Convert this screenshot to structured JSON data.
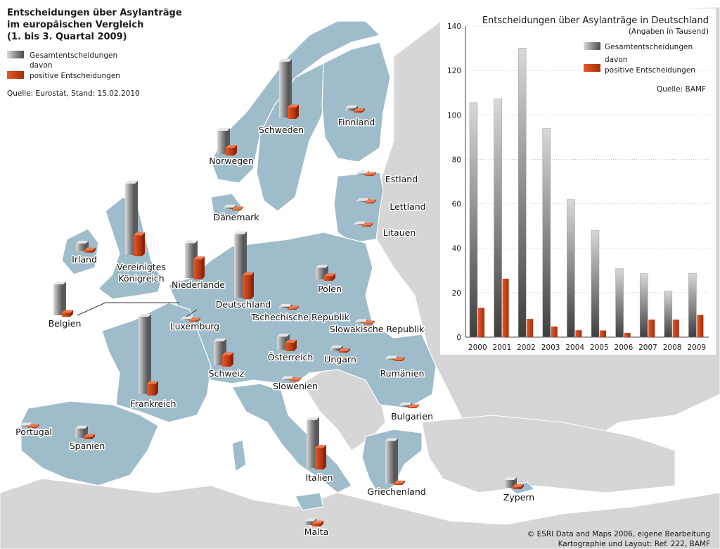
{
  "map": {
    "title_lines": [
      "Entscheidungen über Asylanträge",
      "im europäischen Vergleich",
      "(1. bis 3. Quartal 2009)"
    ],
    "legend": {
      "total_label": "Gesamtentscheidungen",
      "davon_label": "davon",
      "positive_label": "positive Entscheidungen"
    },
    "source": "Quelle: Eurostat, Stand: 15.02.2010",
    "credits": [
      "© ESRI Data and Maps 2006, eigene Bearbeitung",
      "Kartographie und Layout: Ref. 222, BAMF"
    ],
    "colors": {
      "sea": "#ffffff",
      "eu_land": "#9fbccb",
      "other_land": "#d6d6d6",
      "border": "#ffffff",
      "total_bar": "#8a8a8a",
      "positive_bar": "#c63a12"
    },
    "countries": [
      {
        "name": "Norwegen",
        "total_level": 0.3,
        "positive_level": 0.1
      },
      {
        "name": "Schweden",
        "total_level": 0.72,
        "positive_level": 0.15
      },
      {
        "name": "Finnland",
        "total_level": 0.04,
        "positive_level": 0.02
      },
      {
        "name": "Estland",
        "total_level": 0.0,
        "positive_level": 0.0
      },
      {
        "name": "Lettland",
        "total_level": 0.0,
        "positive_level": 0.0
      },
      {
        "name": "Litauen",
        "total_level": 0.0,
        "positive_level": 0.0
      },
      {
        "name": "Dänemark",
        "total_level": 0.02,
        "positive_level": 0.01
      },
      {
        "name": "Irland",
        "total_level": 0.1,
        "positive_level": 0.03
      },
      {
        "name": "Vereinigtes Königreich",
        "total_level": 0.92,
        "positive_level": 0.27
      },
      {
        "name": "Niederlande",
        "total_level": 0.45,
        "positive_level": 0.26
      },
      {
        "name": "Belgien",
        "total_level": 0.4,
        "positive_level": 0.05
      },
      {
        "name": "Luxemburg",
        "total_level": 0.0,
        "positive_level": 0.0
      },
      {
        "name": "Deutschland",
        "total_level": 0.82,
        "positive_level": 0.31
      },
      {
        "name": "Polen",
        "total_level": 0.15,
        "positive_level": 0.06
      },
      {
        "name": "Tschechische Republik",
        "total_level": 0.02,
        "positive_level": 0.01
      },
      {
        "name": "Slowakische Republik",
        "total_level": 0.0,
        "positive_level": 0.0
      },
      {
        "name": "Österreich",
        "total_level": 0.17,
        "positive_level": 0.11
      },
      {
        "name": "Ungarn",
        "total_level": 0.04,
        "positive_level": 0.02
      },
      {
        "name": "Schweiz",
        "total_level": 0.31,
        "positive_level": 0.15
      },
      {
        "name": "Frankreich",
        "total_level": 1.0,
        "positive_level": 0.15
      },
      {
        "name": "Slowenien",
        "total_level": 0.0,
        "positive_level": 0.0
      },
      {
        "name": "Rumänien",
        "total_level": 0.0,
        "positive_level": 0.0
      },
      {
        "name": "Bulgarien",
        "total_level": 0.02,
        "positive_level": 0.01
      },
      {
        "name": "Portugal",
        "total_level": 0.0,
        "positive_level": 0.0
      },
      {
        "name": "Spanien",
        "total_level": 0.12,
        "positive_level": 0.03
      },
      {
        "name": "Italien",
        "total_level": 0.62,
        "positive_level": 0.28
      },
      {
        "name": "Griechenland",
        "total_level": 0.55,
        "positive_level": 0.02
      },
      {
        "name": "Malta",
        "total_level": 0.05,
        "positive_level": 0.04
      },
      {
        "name": "Zypern",
        "total_level": 0.1,
        "positive_level": 0.03
      }
    ]
  },
  "chart_data": {
    "type": "bar",
    "title": "Entscheidungen über Asylanträge in Deutschland",
    "subtitle": "(Angaben in Tausend)",
    "source": "Quelle: BAMF",
    "categories": [
      "2000",
      "2001",
      "2002",
      "2003",
      "2004",
      "2005",
      "2006",
      "2007",
      "2008",
      "2009"
    ],
    "series": [
      {
        "name": "Gesamtentscheidungen",
        "values": [
          105.5,
          107.2,
          130.1,
          93.9,
          61.9,
          48.1,
          30.8,
          28.6,
          20.8,
          28.8
        ]
      },
      {
        "name": "positive Entscheidungen",
        "values": [
          13.2,
          26.3,
          8.2,
          4.8,
          3.1,
          3.0,
          1.9,
          7.9,
          7.9,
          10.0
        ]
      }
    ],
    "legend_davon": "davon",
    "yticks": [
      0,
      20,
      40,
      60,
      80,
      100,
      120,
      140
    ],
    "ylim": [
      0,
      140
    ],
    "grid": true,
    "legend_position": "top-right",
    "colors": {
      "total": "#8a8a8a",
      "positive": "#c63a12"
    }
  }
}
